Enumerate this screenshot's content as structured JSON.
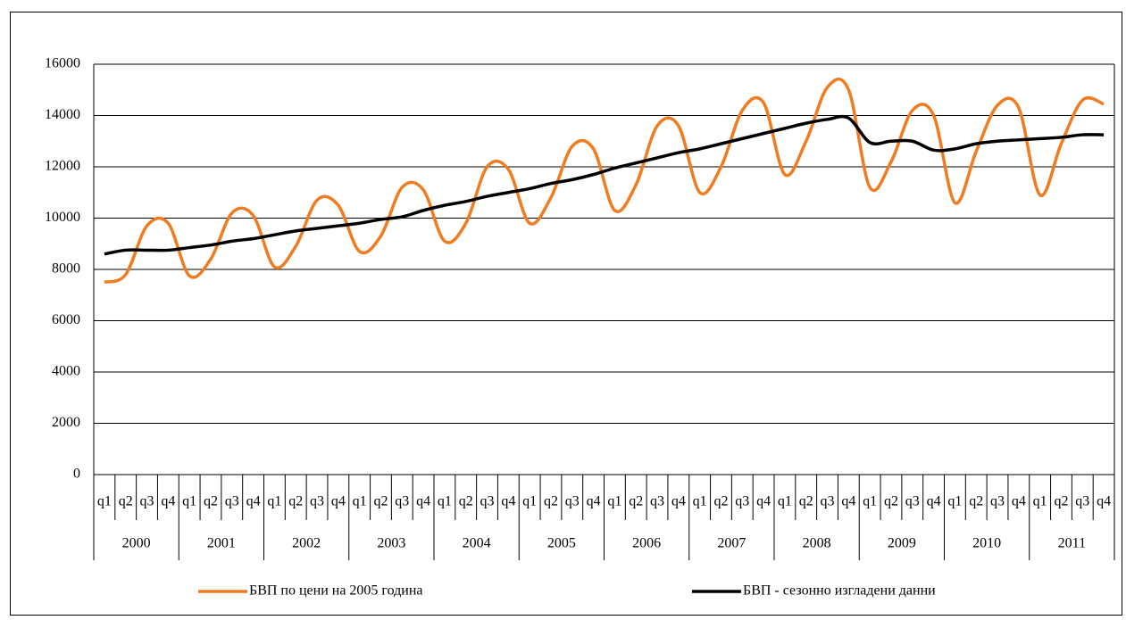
{
  "chart_data": {
    "type": "line",
    "categories": [
      "q1",
      "q2",
      "q3",
      "q4",
      "q1",
      "q2",
      "q3",
      "q4",
      "q1",
      "q2",
      "q3",
      "q4",
      "q1",
      "q2",
      "q3",
      "q4",
      "q1",
      "q2",
      "q3",
      "q4",
      "q1",
      "q2",
      "q3",
      "q4",
      "q1",
      "q2",
      "q3",
      "q4",
      "q1",
      "q2",
      "q3",
      "q4",
      "q1",
      "q2",
      "q3",
      "q4",
      "q1",
      "q2",
      "q3",
      "q4",
      "q1",
      "q2",
      "q3",
      "q4",
      "q1",
      "q2",
      "q3",
      "q4"
    ],
    "years": [
      "2000",
      "2001",
      "2002",
      "2003",
      "2004",
      "2005",
      "2006",
      "2007",
      "2008",
      "2009",
      "2010",
      "2011"
    ],
    "series": [
      {
        "name": "БВП по цени на 2005 година",
        "color": "#f07c22",
        "values": [
          7500,
          7800,
          9700,
          9800,
          7750,
          8400,
          10200,
          10100,
          8100,
          8900,
          10700,
          10500,
          8700,
          9300,
          11200,
          11100,
          9100,
          9800,
          12000,
          11900,
          9800,
          10800,
          12800,
          12700,
          10300,
          11300,
          13600,
          13600,
          11000,
          12000,
          14200,
          14500,
          11700,
          13000,
          15100,
          15000,
          11200,
          12200,
          14200,
          14000,
          10600,
          12600,
          14400,
          14300,
          10900,
          12900,
          14600,
          14450
        ]
      },
      {
        "name": "БВП - сезонно изгладени данни",
        "color": "#000000",
        "values": [
          8600,
          8750,
          8750,
          8750,
          8850,
          8950,
          9100,
          9200,
          9350,
          9500,
          9600,
          9700,
          9800,
          9950,
          10050,
          10300,
          10500,
          10650,
          10850,
          11000,
          11150,
          11350,
          11500,
          11700,
          11950,
          12150,
          12350,
          12550,
          12700,
          12900,
          13100,
          13300,
          13500,
          13700,
          13850,
          13900,
          12950,
          13000,
          13000,
          12650,
          12700,
          12900,
          13000,
          13050,
          13100,
          13150,
          13250,
          13250
        ]
      }
    ],
    "ylim": [
      0,
      16000
    ],
    "yticks": [
      0,
      2000,
      4000,
      6000,
      8000,
      10000,
      12000,
      14000,
      16000
    ],
    "grid": true
  }
}
